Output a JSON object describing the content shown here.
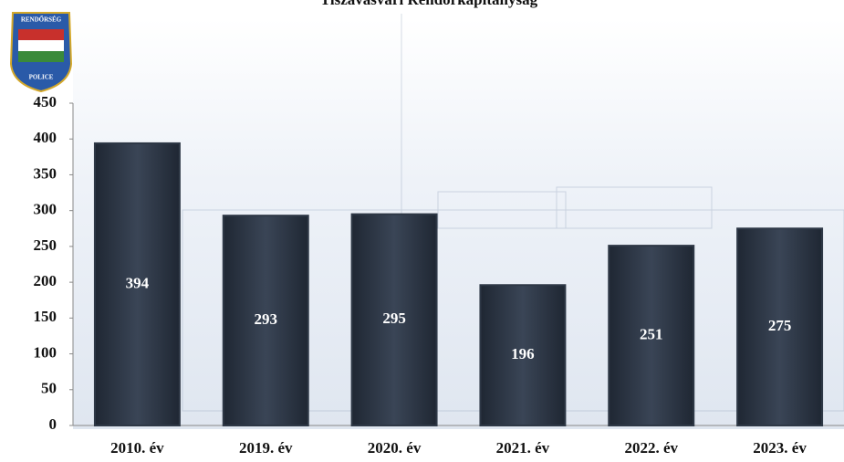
{
  "chart_data": {
    "type": "bar",
    "title": "Tiszavasvári Rendőrkapitányság",
    "categories": [
      "2010. év",
      "2019. év",
      "2020. év",
      "2021. év",
      "2022. év",
      "2023. év"
    ],
    "values": [
      394,
      293,
      295,
      196,
      251,
      275
    ],
    "color": "#2e3846",
    "ylim": [
      0,
      450
    ],
    "yticks": [
      0,
      50,
      100,
      150,
      200,
      250,
      300,
      350,
      400,
      450
    ],
    "grid": false
  },
  "logo": {
    "top": "RENDŐRSÉG",
    "bottom": "POLICE"
  }
}
